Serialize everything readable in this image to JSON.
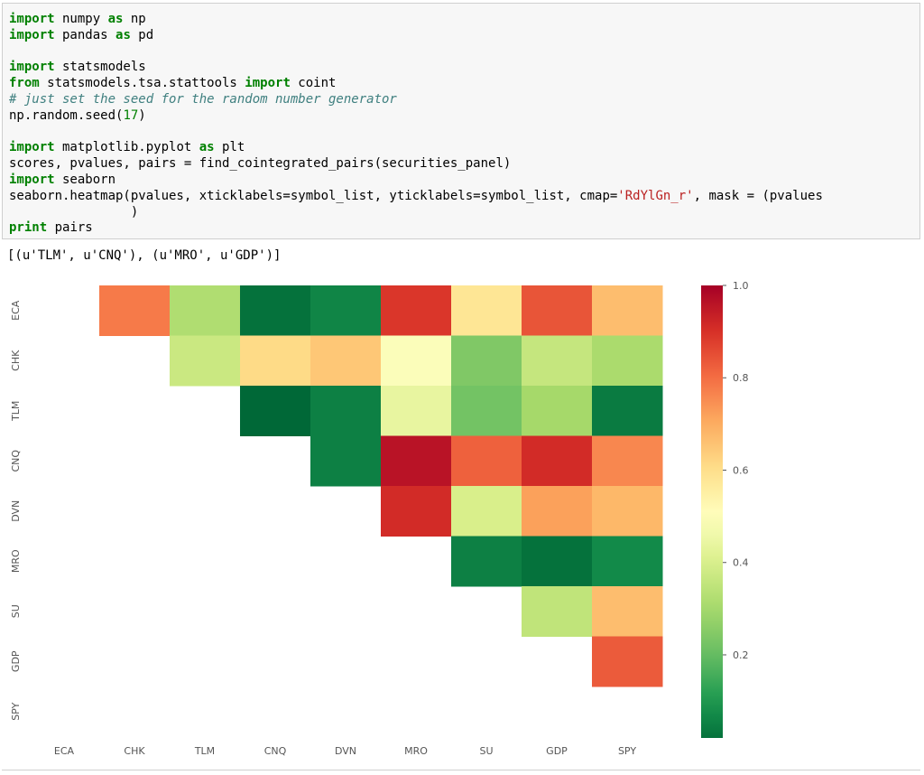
{
  "code_cell": {
    "lines": [
      [
        {
          "t": "import",
          "c": "kw"
        },
        {
          "t": " numpy "
        },
        {
          "t": "as",
          "c": "kw"
        },
        {
          "t": " np"
        }
      ],
      [
        {
          "t": "import",
          "c": "kw"
        },
        {
          "t": " pandas "
        },
        {
          "t": "as",
          "c": "kw"
        },
        {
          "t": " pd"
        }
      ],
      [],
      [
        {
          "t": "import",
          "c": "kw"
        },
        {
          "t": " statsmodels"
        }
      ],
      [
        {
          "t": "from",
          "c": "kw"
        },
        {
          "t": " statsmodels.tsa.stattools "
        },
        {
          "t": "import",
          "c": "kw"
        },
        {
          "t": " coint"
        }
      ],
      [
        {
          "t": "# just set the seed for the random number generator",
          "c": "cm"
        }
      ],
      [
        {
          "t": "np.random.seed("
        },
        {
          "t": "17",
          "c": "nm"
        },
        {
          "t": ")"
        }
      ],
      [],
      [
        {
          "t": "import",
          "c": "kw"
        },
        {
          "t": " matplotlib.pyplot "
        },
        {
          "t": "as",
          "c": "kw"
        },
        {
          "t": " plt"
        }
      ],
      [
        {
          "t": "scores, pvalues, pairs = find_cointegrated_pairs(securities_panel)"
        }
      ],
      [
        {
          "t": "import",
          "c": "kw"
        },
        {
          "t": " seaborn"
        }
      ],
      [
        {
          "t": "seaborn.heatmap(pvalues, xticklabels=symbol_list, yticklabels=symbol_list, cmap="
        },
        {
          "t": "'RdYlGn_r'",
          "c": "st"
        },
        {
          "t": ", mask = (pvalues"
        }
      ],
      [
        {
          "t": "                )"
        }
      ],
      [
        {
          "t": "print",
          "c": "kw"
        },
        {
          "t": " pairs"
        }
      ]
    ]
  },
  "output": {
    "text": "[(u'TLM', u'CNQ'), (u'MRO', u'GDP')]"
  },
  "chart_data": {
    "type": "heatmap",
    "symbols": [
      "ECA",
      "CHK",
      "TLM",
      "CNQ",
      "DVN",
      "MRO",
      "SU",
      "GDP",
      "SPY"
    ],
    "values": [
      [
        null,
        0.78,
        0.32,
        0.02,
        0.06,
        0.89,
        0.58,
        0.84,
        0.67
      ],
      [
        null,
        null,
        0.37,
        0.61,
        0.65,
        0.49,
        0.24,
        0.36,
        0.31
      ],
      [
        null,
        null,
        null,
        0.0,
        0.05,
        0.44,
        0.22,
        0.3,
        0.04
      ],
      [
        null,
        null,
        null,
        null,
        0.05,
        0.96,
        0.82,
        0.91,
        0.76
      ],
      [
        null,
        null,
        null,
        null,
        null,
        0.91,
        0.4,
        0.72,
        0.68
      ],
      [
        null,
        null,
        null,
        null,
        null,
        null,
        0.05,
        0.02,
        0.07
      ],
      [
        null,
        null,
        null,
        null,
        null,
        null,
        null,
        0.35,
        0.67
      ],
      [
        null,
        null,
        null,
        null,
        null,
        null,
        null,
        null,
        0.83
      ],
      [
        null,
        null,
        null,
        null,
        null,
        null,
        null,
        null,
        null
      ]
    ],
    "colormap": "RdYlGn_r",
    "vmin": 0.0,
    "vmax": 1.0,
    "colorbar_ticks": [
      "0.2",
      "0.4",
      "0.6",
      "0.8",
      "1.0"
    ],
    "colorbar_tick_values": [
      0.2,
      0.4,
      0.6,
      0.8,
      1.0
    ],
    "colorbar_range": [
      0.02,
      1.0
    ]
  }
}
